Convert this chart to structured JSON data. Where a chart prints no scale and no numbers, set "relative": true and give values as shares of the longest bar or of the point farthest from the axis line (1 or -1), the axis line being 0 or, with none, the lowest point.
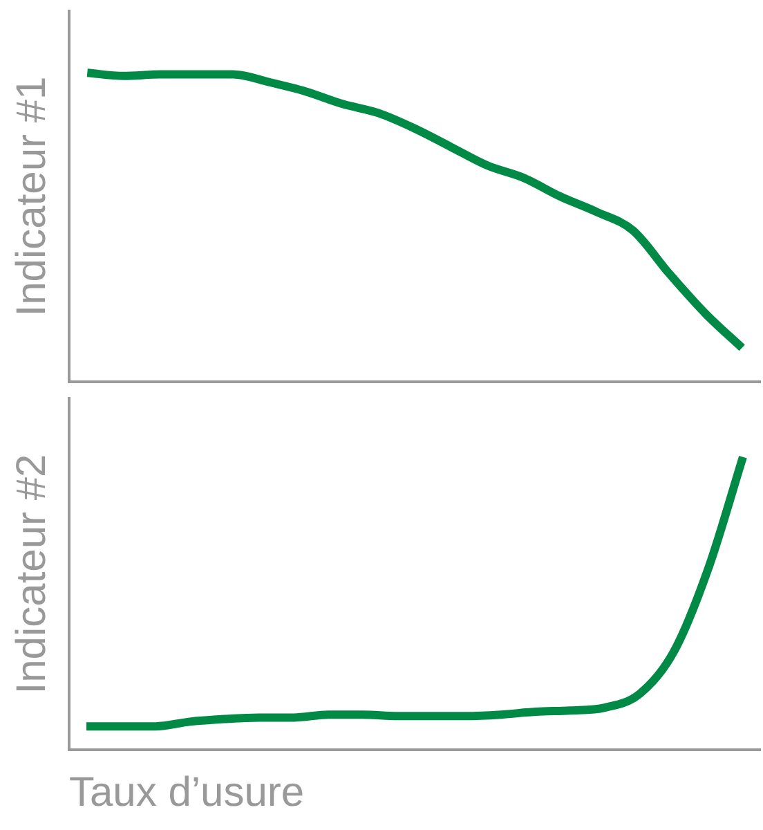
{
  "chart_data": [
    {
      "type": "line",
      "ylabel": "Indicateur #1",
      "relative": true,
      "grid": false,
      "legend": false,
      "marker": "none",
      "line_style": "solid",
      "categories": [
        null,
        null,
        null,
        null,
        null,
        null,
        null,
        null,
        null,
        null,
        null,
        null,
        null,
        null,
        null,
        null,
        null,
        null,
        null
      ],
      "series": [
        {
          "color": "#008a45",
          "values": [
            1.0,
            0.99,
            0.995,
            0.995,
            0.995,
            0.97,
            0.94,
            0.9,
            0.87,
            0.82,
            0.76,
            0.7,
            0.66,
            0.6,
            0.55,
            0.49,
            0.35,
            0.22,
            0.11
          ]
        }
      ]
    },
    {
      "type": "line",
      "ylabel": "Indicateur #2",
      "xlabel": "Taux d’usure",
      "relative": true,
      "grid": false,
      "legend": false,
      "marker": "none",
      "line_style": "solid",
      "categories": [
        null,
        null,
        null,
        null,
        null,
        null,
        null,
        null,
        null,
        null,
        null,
        null,
        null,
        null,
        null,
        null,
        null,
        null,
        null,
        null
      ],
      "series": [
        {
          "color": "#008a45",
          "values": [
            0.08,
            0.08,
            0.08,
            0.096,
            0.105,
            0.11,
            0.11,
            0.12,
            0.12,
            0.115,
            0.115,
            0.115,
            0.12,
            0.13,
            0.134,
            0.144,
            0.19,
            0.335,
            0.62,
            1.0
          ]
        }
      ]
    }
  ]
}
